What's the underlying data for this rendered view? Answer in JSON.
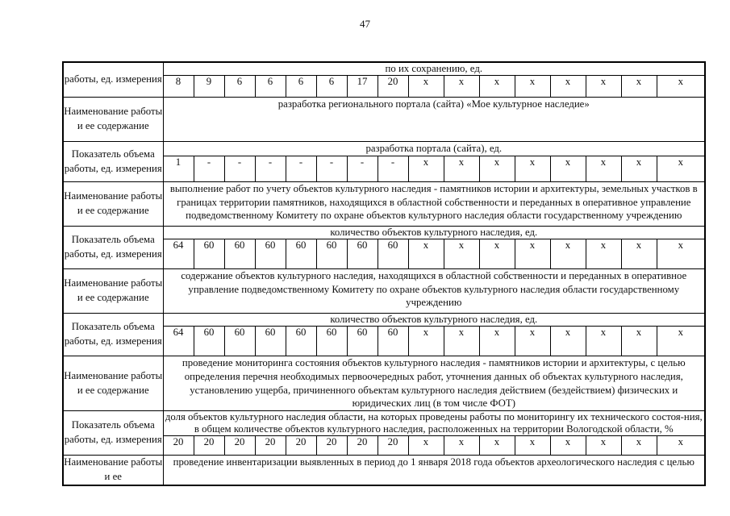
{
  "page": {
    "number": "47"
  },
  "table": {
    "rows": [
      {
        "type": "indicator",
        "label": "работы, ед. измерения",
        "header": "по их сохранению, ед.",
        "values": [
          "8",
          "9",
          "6",
          "6",
          "6",
          "6",
          "17",
          "20",
          "x",
          "x",
          "x",
          "x",
          "x",
          "x",
          "x",
          "x"
        ]
      },
      {
        "type": "name",
        "label": "Наименование работы и ее содержание",
        "text": "разработка регионального портала (сайта) «Мое культурное наследие»"
      },
      {
        "type": "indicator",
        "label": "Показатель объема работы, ед. измерения",
        "header": "разработка портала (сайта), ед.",
        "values": [
          "1",
          "-",
          "-",
          "-",
          "-",
          "-",
          "-",
          "-",
          "x",
          "x",
          "x",
          "x",
          "x",
          "x",
          "x",
          "x"
        ]
      },
      {
        "type": "name",
        "label": "Наименование работы и ее содержание",
        "text": "выполнение работ по учету объектов культурного наследия - памятников истории и архитектуры, земельных участков в границах территории памятников, находящихся в областной собственности и переданных в оперативное управление подведомственному Комитету по охране объектов культурного наследия области государственному учреждению"
      },
      {
        "type": "indicator",
        "label": "Показатель объема работы, ед. измерения",
        "header": "количество объектов культурного наследия, ед.",
        "values": [
          "64",
          "60",
          "60",
          "60",
          "60",
          "60",
          "60",
          "60",
          "x",
          "x",
          "x",
          "x",
          "x",
          "x",
          "x",
          "x"
        ]
      },
      {
        "type": "name",
        "label": "Наименование работы и ее содержание",
        "text": "содержание объектов культурного наследия, находящихся в областной собственности и переданных в оперативное управление подведомственному Комитету по охране объектов культурного наследия области государственному учреждению"
      },
      {
        "type": "indicator",
        "label": "Показатель объема работы, ед. измерения",
        "header": "количество объектов культурного наследия, ед.",
        "values": [
          "64",
          "60",
          "60",
          "60",
          "60",
          "60",
          "60",
          "60",
          "x",
          "x",
          "x",
          "x",
          "x",
          "x",
          "x",
          "x"
        ]
      },
      {
        "type": "name",
        "label": "Наименование работы и ее содержание",
        "text": "проведение мониторинга состояния объектов культурного наследия - памятников истории и архитектуры, с целью определения перечня необходимых первоочередных работ, уточнения данных об объектах культурного наследия, установлению ущерба, причиненного объектам культурного наследия действием (бездействием) физических и юридических лиц (в том числе ФОТ)"
      },
      {
        "type": "indicator",
        "label": "Показатель объема работы, ед. измерения",
        "header": "доля объектов культурного наследия области, на которых проведены работы по мониторингу их технического состоя-ния, в общем количестве объектов культурного наследия, расположенных на территории Вологодской области, %",
        "values": [
          "20",
          "20",
          "20",
          "20",
          "20",
          "20",
          "20",
          "20",
          "x",
          "x",
          "x",
          "x",
          "x",
          "x",
          "x",
          "x"
        ]
      },
      {
        "type": "name",
        "label": "Наименование работы и ее",
        "text": "проведение инвентаризации выявленных в период до 1 января 2018 года объектов археологического наследия с целью"
      }
    ]
  }
}
